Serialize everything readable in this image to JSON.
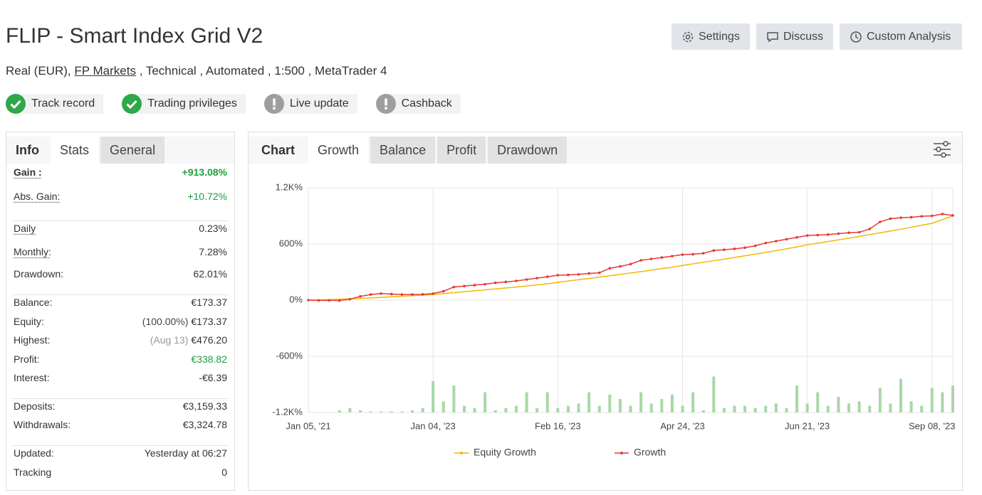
{
  "header": {
    "title": "FLIP - Smart Index Grid V2",
    "subtitle": {
      "account": "Real (EUR),",
      "broker": "FP Markets",
      "details": ", Technical , Automated , 1:500 , MetaTrader 4"
    },
    "buttons": [
      {
        "label": "Settings",
        "icon": "gear"
      },
      {
        "label": "Discuss",
        "icon": "chat"
      },
      {
        "label": "Custom Analysis",
        "icon": "clock"
      }
    ],
    "badges": [
      {
        "label": "Track record",
        "icon": "check"
      },
      {
        "label": "Trading privileges",
        "icon": "check"
      },
      {
        "label": "Live update",
        "icon": "exclamation"
      },
      {
        "label": "Cashback",
        "icon": "exclamation"
      }
    ]
  },
  "stats_panel": {
    "tabs": [
      "Info",
      "Stats",
      "General"
    ],
    "active_tab": 1,
    "groups": [
      [
        {
          "label": "Gain :",
          "value": "+913.08%",
          "color": "#1e9e3e",
          "bold": true
        },
        {
          "label": "Abs. Gain:",
          "value": "+10.72%",
          "color": "#1e9e3e"
        }
      ],
      [
        {
          "label": "Daily",
          "value": "0.23%"
        },
        {
          "label": "Monthly:",
          "value": "7.28%"
        },
        {
          "label": "Drawdown:",
          "value": "62.01%"
        }
      ],
      [
        {
          "label": "Balance:",
          "value": "€173.37"
        },
        {
          "label": "Equity:",
          "note": "(100.00%)",
          "value": "€173.37"
        },
        {
          "label": "Highest:",
          "note": "(Aug 13)",
          "value": "€476.20"
        },
        {
          "label": "Profit:",
          "value": "€338.82",
          "color": "#1e9e3e"
        },
        {
          "label": "Interest:",
          "value": "-€6.39"
        }
      ],
      [
        {
          "label": "Deposits:",
          "value": "€3,159.33"
        },
        {
          "label": "Withdrawals:",
          "value": "€3,324.78"
        }
      ],
      [
        {
          "label": "Updated:",
          "value": "Yesterday at 06:27"
        },
        {
          "label": "Tracking",
          "value": "0"
        }
      ]
    ]
  },
  "chart_panel": {
    "label": "Chart",
    "tabs": [
      "Growth",
      "Balance",
      "Profit",
      "Drawdown"
    ],
    "active_tab": 0
  },
  "chart_data": {
    "type": "line",
    "grid": true,
    "legend": "bottom",
    "categories": [
      "Jan 05, '21",
      null,
      null,
      null,
      null,
      null,
      null,
      null,
      null,
      null,
      null,
      null,
      "Jan 04, '23",
      null,
      null,
      null,
      null,
      null,
      null,
      null,
      null,
      null,
      null,
      null,
      "Feb 16, '23",
      null,
      null,
      null,
      null,
      null,
      null,
      null,
      null,
      null,
      null,
      null,
      "Apr 24, '23",
      null,
      null,
      null,
      null,
      null,
      null,
      null,
      null,
      null,
      null,
      null,
      "Jun 21, '23",
      null,
      null,
      null,
      null,
      null,
      null,
      null,
      null,
      null,
      null,
      null,
      "Sep 08, '23",
      null,
      null
    ],
    "ylim": [
      -1200,
      1200
    ],
    "yticks": [
      {
        "value": 1200,
        "label": "1.2K%"
      },
      {
        "value": 600,
        "label": "600%"
      },
      {
        "value": 0,
        "label": "0%"
      },
      {
        "value": -600,
        "label": "-600%"
      },
      {
        "value": -1200,
        "label": "-1.2K%"
      }
    ],
    "y2lim": [
      0,
      100
    ],
    "series": [
      {
        "name": "Equity Growth",
        "color": "#f2b705",
        "values": [
          0,
          3,
          6,
          10,
          14,
          19,
          24,
          29,
          35,
          41,
          47,
          53,
          60,
          70,
          80,
          90,
          100,
          110,
          120,
          130,
          140,
          151,
          162,
          175,
          190,
          204,
          218,
          232,
          246,
          260,
          275,
          290,
          305,
          320,
          336,
          352,
          370,
          387,
          404,
          421,
          438,
          456,
          474,
          492,
          510,
          529,
          548,
          568,
          590,
          608,
          626,
          644,
          662,
          681,
          700,
          719,
          738,
          758,
          778,
          799,
          820,
          860,
          900
        ]
      },
      {
        "name": "Growth",
        "color": "#e53935",
        "markers": true,
        "values": [
          0,
          -3,
          -2,
          -5,
          10,
          40,
          60,
          70,
          65,
          60,
          60,
          62,
          70,
          95,
          140,
          150,
          160,
          170,
          185,
          195,
          205,
          220,
          235,
          250,
          266,
          270,
          275,
          285,
          292,
          340,
          360,
          385,
          425,
          440,
          455,
          470,
          486,
          490,
          500,
          530,
          538,
          548,
          560,
          580,
          610,
          630,
          650,
          670,
          690,
          695,
          700,
          710,
          720,
          725,
          760,
          835,
          870,
          880,
          885,
          895,
          900,
          920,
          905
        ]
      },
      {
        "type": "bar",
        "axis": "y2",
        "color": "#a8d8a8",
        "values": [
          0,
          0,
          0,
          1,
          2,
          1,
          0.5,
          0.5,
          0.5,
          0.5,
          1,
          2,
          14,
          5,
          12,
          3,
          2,
          9,
          1,
          2,
          3,
          9,
          2,
          9,
          2,
          3,
          4,
          9,
          3,
          8,
          6,
          3,
          9,
          4,
          6,
          8,
          3,
          9,
          1,
          16,
          2,
          3,
          3,
          2,
          3,
          4,
          2,
          12,
          4,
          9,
          3,
          7,
          4,
          5,
          3,
          11,
          4,
          15,
          5,
          3,
          11,
          9,
          12
        ]
      }
    ]
  }
}
